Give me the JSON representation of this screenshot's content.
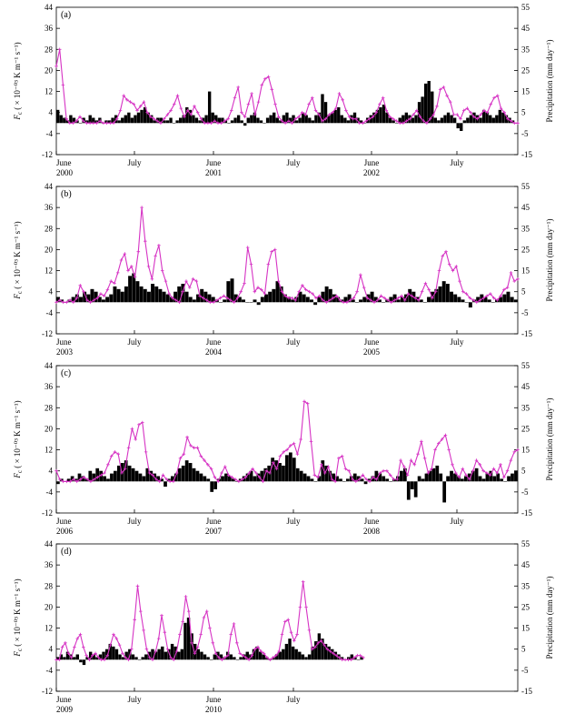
{
  "colors": {
    "precip_line": "#d633c4",
    "flux_bars": "#000000"
  },
  "axes_text": {
    "left_label": "F",
    "left_label_sub": "c",
    "left_label_rest": "( × 10⁻⁰³ K m⁻¹ s⁻¹)",
    "right_label": "Precipitation (mm day⁻¹)"
  },
  "chart_data": [
    {
      "type": "bar+line",
      "panel": "(a)",
      "years": [
        "2000",
        "2001",
        "2002"
      ],
      "x_ticks": [
        "June",
        "July",
        "June",
        "July",
        "June",
        "July"
      ],
      "left_ylim": [
        -12,
        44
      ],
      "left_yticks": [
        -12,
        -4,
        4,
        12,
        20,
        28,
        36,
        44
      ],
      "right_ylim": [
        -15,
        55
      ],
      "right_yticks": [
        -15,
        -5,
        5,
        15,
        25,
        35,
        45,
        55
      ],
      "series": [
        {
          "kind": "bar",
          "axis": "left",
          "values": [
            5,
            3,
            2,
            1,
            3,
            2,
            1,
            0,
            2,
            1,
            3,
            2,
            1,
            2,
            0,
            1,
            1,
            2,
            3,
            1,
            2,
            3,
            4,
            2,
            3,
            4,
            5,
            6,
            4,
            3,
            1,
            2,
            2,
            1,
            1,
            2,
            0,
            1,
            2,
            3,
            6,
            5,
            3,
            2,
            1,
            2,
            3,
            12,
            4,
            3,
            2,
            2,
            1,
            0,
            1,
            2,
            3,
            1,
            -1,
            2,
            3,
            4,
            2,
            1,
            0,
            2,
            3,
            4,
            2,
            1,
            3,
            4,
            2,
            3,
            1,
            2,
            4,
            3,
            2,
            1,
            3,
            4,
            11,
            8,
            3,
            4,
            5,
            6,
            3,
            2,
            1,
            3,
            4,
            2,
            1,
            0,
            2,
            3,
            4,
            5,
            6,
            7,
            4,
            2,
            1,
            0,
            2,
            3,
            4,
            3,
            2,
            3,
            8,
            10,
            15,
            16,
            12,
            2,
            1,
            2,
            3,
            4,
            3,
            2,
            -2,
            -3,
            1,
            2,
            3,
            4,
            3,
            2,
            5,
            4,
            3,
            2,
            3,
            5,
            4,
            3,
            2,
            1,
            0
          ]
        },
        {
          "kind": "line",
          "axis": "right",
          "values": [
            27,
            35,
            18,
            2,
            0,
            0,
            1,
            3,
            1,
            0,
            0,
            0,
            0,
            1,
            0,
            0,
            0,
            0,
            2,
            6,
            13,
            11,
            10,
            9,
            6,
            8,
            10,
            5,
            3,
            2,
            1,
            0,
            2,
            4,
            6,
            9,
            13,
            7,
            3,
            6,
            4,
            8,
            5,
            2,
            0,
            0,
            0,
            1,
            0,
            0,
            1,
            2,
            6,
            12,
            17,
            5,
            3,
            9,
            14,
            4,
            10,
            18,
            21,
            22,
            16,
            9,
            3,
            1,
            0,
            1,
            0,
            2,
            3,
            5,
            4,
            9,
            12,
            6,
            4,
            1,
            2,
            4,
            5,
            7,
            14,
            11,
            6,
            3,
            2,
            2,
            0,
            0,
            1,
            2,
            3,
            5,
            9,
            12,
            6,
            3,
            2,
            1,
            0,
            0,
            1,
            2,
            4,
            6,
            3,
            1,
            0,
            2,
            4,
            8,
            16,
            17,
            13,
            10,
            4,
            4,
            2,
            6,
            7,
            5,
            3,
            2,
            4,
            6,
            5,
            9,
            12,
            13,
            7,
            5,
            2,
            1,
            0,
            0
          ]
        }
      ]
    },
    {
      "type": "bar+line",
      "panel": "(b)",
      "years": [
        "2003",
        "2004",
        "2005"
      ],
      "x_ticks": [
        "June",
        "July",
        "June",
        "July",
        "June",
        "July"
      ],
      "left_ylim": [
        -12,
        44
      ],
      "left_yticks": [
        -12,
        -4,
        4,
        12,
        20,
        28,
        36,
        44
      ],
      "right_ylim": [
        -15,
        55
      ],
      "right_yticks": [
        -15,
        -5,
        5,
        15,
        25,
        35,
        45,
        55
      ],
      "series": [
        {
          "kind": "bar",
          "axis": "left",
          "values": [
            2,
            1,
            0,
            1,
            2,
            3,
            2,
            4,
            3,
            5,
            4,
            2,
            1,
            2,
            3,
            6,
            5,
            4,
            6,
            10,
            11,
            8,
            6,
            5,
            4,
            7,
            6,
            5,
            4,
            3,
            2,
            4,
            6,
            7,
            4,
            2,
            1,
            3,
            5,
            4,
            3,
            2,
            1,
            0,
            1,
            8,
            9,
            3,
            2,
            1,
            0,
            0,
            1,
            -1,
            2,
            3,
            4,
            5,
            8,
            6,
            3,
            2,
            1,
            2,
            4,
            3,
            2,
            1,
            -1,
            2,
            4,
            6,
            5,
            3,
            2,
            1,
            2,
            3,
            1,
            0,
            1,
            2,
            3,
            4,
            2,
            1,
            0,
            1,
            2,
            3,
            1,
            2,
            3,
            5,
            4,
            2,
            1,
            0,
            2,
            4,
            5,
            6,
            8,
            7,
            4,
            3,
            2,
            1,
            0,
            -2,
            1,
            2,
            3,
            2,
            1,
            0,
            1,
            2,
            3,
            4,
            2,
            1
          ]
        },
        {
          "kind": "line",
          "axis": "right",
          "values": [
            0,
            1,
            0,
            0,
            1,
            0,
            2,
            8,
            5,
            1,
            0,
            1,
            2,
            4,
            3,
            6,
            10,
            9,
            14,
            20,
            23,
            15,
            17,
            12,
            24,
            45,
            29,
            17,
            11,
            22,
            27,
            15,
            10,
            4,
            2,
            1,
            0,
            5,
            10,
            7,
            11,
            10,
            3,
            2,
            1,
            0,
            0,
            1,
            2,
            3,
            2,
            1,
            0,
            2,
            5,
            9,
            26,
            18,
            5,
            7,
            6,
            4,
            18,
            24,
            25,
            10,
            5,
            3,
            2,
            2,
            1,
            5,
            8,
            6,
            5,
            4,
            2,
            3,
            1,
            0,
            1,
            2,
            3,
            1,
            0,
            0,
            1,
            2,
            5,
            13,
            7,
            2,
            1,
            0,
            1,
            3,
            2,
            1,
            0,
            1,
            2,
            3,
            1,
            4,
            3,
            2,
            1,
            5,
            9,
            6,
            2,
            5,
            15,
            22,
            24,
            18,
            15,
            17,
            10,
            5,
            4,
            2,
            1,
            0,
            1,
            2,
            3,
            4,
            2,
            1,
            3,
            6,
            7,
            14,
            10,
            11
          ]
        }
      ]
    },
    {
      "type": "bar+line",
      "panel": "(c)",
      "years": [
        "2006",
        "2007",
        "2008"
      ],
      "x_ticks": [
        "June",
        "July",
        "June",
        "July",
        "June",
        "July"
      ],
      "left_ylim": [
        -12,
        44
      ],
      "left_yticks": [
        -12,
        -4,
        4,
        12,
        20,
        28,
        36,
        44
      ],
      "right_ylim": [
        -15,
        55
      ],
      "right_yticks": [
        -15,
        -5,
        5,
        15,
        25,
        35,
        45,
        55
      ],
      "series": [
        {
          "kind": "bar",
          "axis": "left",
          "values": [
            -1,
            1,
            0,
            1,
            2,
            1,
            3,
            2,
            1,
            4,
            3,
            5,
            4,
            2,
            1,
            3,
            4,
            6,
            7,
            8,
            6,
            5,
            4,
            3,
            2,
            5,
            4,
            3,
            2,
            1,
            -2,
            1,
            2,
            3,
            5,
            6,
            8,
            7,
            5,
            4,
            3,
            2,
            1,
            -4,
            -3,
            1,
            2,
            3,
            2,
            1,
            0,
            1,
            2,
            3,
            4,
            2,
            3,
            4,
            5,
            6,
            9,
            8,
            7,
            6,
            10,
            11,
            9,
            5,
            4,
            3,
            2,
            1,
            0,
            2,
            8,
            6,
            4,
            3,
            2,
            1,
            0,
            1,
            2,
            3,
            2,
            1,
            -1,
            1,
            2,
            4,
            3,
            2,
            1,
            0,
            1,
            2,
            4,
            5,
            -7,
            -3,
            -6,
            2,
            1,
            3,
            4,
            5,
            6,
            3,
            -8,
            2,
            4,
            3,
            2,
            1,
            2,
            3,
            4,
            5,
            2,
            1,
            3,
            4,
            2,
            3,
            1,
            0,
            2,
            3,
            4
          ]
        },
        {
          "kind": "line",
          "axis": "right",
          "values": [
            5,
            1,
            0,
            0,
            0,
            1,
            0,
            1,
            2,
            1,
            0,
            1,
            2,
            3,
            4,
            8,
            12,
            14,
            13,
            4,
            6,
            16,
            25,
            20,
            27,
            28,
            14,
            4,
            3,
            1,
            0,
            3,
            1,
            0,
            0,
            4,
            11,
            13,
            21,
            17,
            16,
            16,
            12,
            10,
            8,
            6,
            2,
            0,
            4,
            7,
            3,
            2,
            1,
            0,
            1,
            2,
            4,
            6,
            4,
            2,
            0,
            5,
            4,
            9,
            6,
            12,
            14,
            15,
            17,
            18,
            13,
            20,
            38,
            37,
            19,
            3,
            2,
            8,
            4,
            7,
            1,
            0,
            11,
            12,
            6,
            5,
            1,
            0,
            1,
            3,
            1,
            0,
            2,
            1,
            4,
            5,
            5,
            3,
            1,
            1,
            10,
            7,
            3,
            10,
            8,
            13,
            19,
            11,
            4,
            6,
            15,
            18,
            20,
            22,
            15,
            8,
            4,
            2,
            6,
            3,
            1,
            5,
            10,
            8,
            5,
            4,
            3,
            6,
            4,
            8,
            2,
            5,
            10,
            14,
            15
          ]
        }
      ]
    },
    {
      "type": "bar+line",
      "panel": "(d)",
      "years": [
        "2009",
        "2010"
      ],
      "x_ticks": [
        "June",
        "July",
        "June",
        "July"
      ],
      "left_ylim": [
        -12,
        44
      ],
      "left_yticks": [
        -12,
        -4,
        4,
        12,
        20,
        28,
        36,
        44
      ],
      "right_ylim": [
        -15,
        55
      ],
      "right_yticks": [
        -15,
        -5,
        5,
        15,
        25,
        35,
        45,
        55
      ],
      "series": [
        {
          "kind": "bar",
          "axis": "left",
          "values": [
            1,
            2,
            1,
            3,
            2,
            1,
            2,
            -1,
            -2,
            1,
            3,
            2,
            1,
            2,
            3,
            4,
            6,
            5,
            4,
            2,
            1,
            3,
            4,
            2,
            1,
            0,
            1,
            2,
            3,
            4,
            3,
            4,
            5,
            3,
            4,
            6,
            5,
            3,
            4,
            14,
            16,
            10,
            6,
            4,
            3,
            2,
            1,
            0,
            2,
            3,
            2,
            1,
            3,
            2,
            1,
            0,
            1,
            2,
            3,
            2,
            4,
            5,
            3,
            2,
            1,
            0,
            1,
            2,
            3,
            4,
            6,
            8,
            5,
            4,
            3,
            2,
            1,
            2,
            5,
            7,
            10,
            8,
            6,
            5,
            4,
            3,
            2,
            1,
            0,
            1,
            2,
            1,
            0,
            1
          ]
        },
        {
          "kind": "line",
          "axis": "right",
          "values": [
            0,
            0,
            6,
            8,
            3,
            1,
            6,
            10,
            12,
            6,
            2,
            0,
            2,
            3,
            1,
            0,
            0,
            2,
            7,
            12,
            10,
            7,
            3,
            1,
            0,
            5,
            19,
            35,
            23,
            14,
            5,
            1,
            0,
            4,
            10,
            21,
            13,
            5,
            1,
            0,
            4,
            12,
            18,
            30,
            23,
            8,
            3,
            6,
            12,
            20,
            23,
            15,
            8,
            3,
            1,
            0,
            1,
            2,
            12,
            17,
            8,
            3,
            2,
            1,
            0,
            2,
            5,
            6,
            4,
            3,
            1,
            0,
            1,
            2,
            4,
            12,
            18,
            19,
            13,
            9,
            12,
            25,
            37,
            25,
            14,
            5,
            6,
            8,
            9,
            7,
            5,
            4,
            3,
            2,
            1,
            0,
            0,
            0,
            0,
            1,
            2,
            2,
            1
          ]
        }
      ]
    }
  ]
}
